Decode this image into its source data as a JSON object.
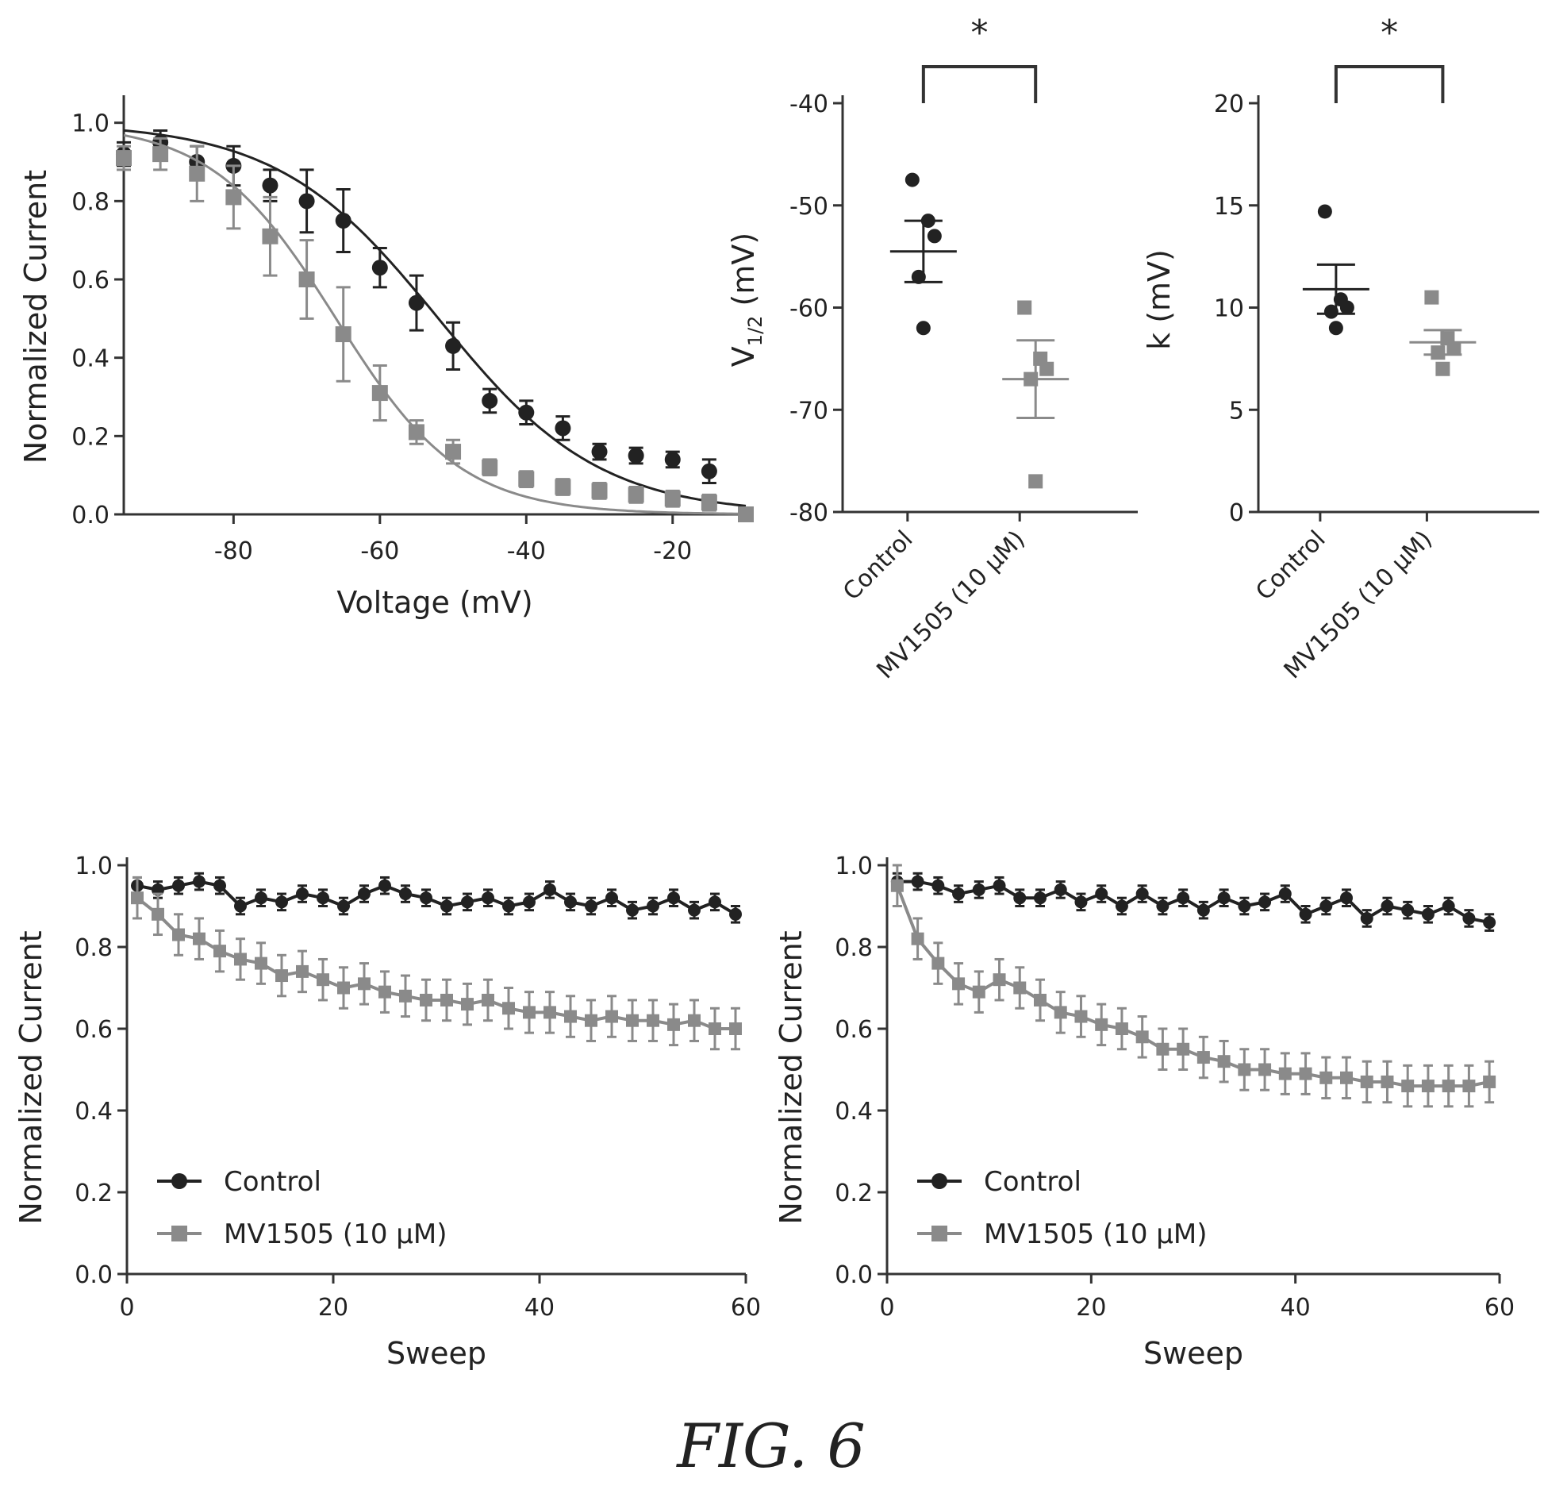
{
  "figure_label": "FIG. 6",
  "colors": {
    "control": "#222222",
    "mv1505": "#8a8a8a"
  },
  "chart_data": [
    {
      "id": "inactivation",
      "type": "scatter",
      "title": "",
      "xlabel": "Voltage (mV)",
      "ylabel": "Normalized Current",
      "xlim": [
        -95,
        -10
      ],
      "ylim": [
        0.0,
        1.05
      ],
      "xticks": [
        -80,
        -60,
        -40,
        -20
      ],
      "xtick_labels": [
        "-80",
        "-60",
        "-40",
        "-20"
      ],
      "yticks": [
        0.0,
        0.2,
        0.4,
        0.6,
        0.8,
        1.0
      ],
      "ytick_labels": [
        "0.0",
        "0.2",
        "0.4",
        "0.6",
        "0.8",
        "1.0"
      ],
      "series": [
        {
          "key": "control",
          "x": [
            -95,
            -90,
            -85,
            -80,
            -75,
            -70,
            -65,
            -60,
            -55,
            -50,
            -45,
            -40,
            -35,
            -30,
            -25,
            -20,
            -15,
            -10
          ],
          "y": [
            0.92,
            0.95,
            0.9,
            0.89,
            0.84,
            0.8,
            0.75,
            0.63,
            0.54,
            0.43,
            0.29,
            0.26,
            0.22,
            0.16,
            0.15,
            0.14,
            0.11,
            0.0
          ],
          "err": [
            0.03,
            0.03,
            0.04,
            0.05,
            0.04,
            0.08,
            0.08,
            0.05,
            0.07,
            0.06,
            0.03,
            0.03,
            0.03,
            0.02,
            0.02,
            0.02,
            0.03,
            0.01
          ],
          "fit": {
            "v_half": -52,
            "k": 11
          }
        },
        {
          "key": "mv1505",
          "x": [
            -95,
            -90,
            -85,
            -80,
            -75,
            -70,
            -65,
            -60,
            -55,
            -50,
            -45,
            -40,
            -35,
            -30,
            -25,
            -20,
            -15,
            -10
          ],
          "y": [
            0.91,
            0.92,
            0.87,
            0.81,
            0.71,
            0.6,
            0.46,
            0.31,
            0.21,
            0.16,
            0.12,
            0.09,
            0.07,
            0.06,
            0.05,
            0.04,
            0.03,
            0.0
          ],
          "err": [
            0.03,
            0.04,
            0.07,
            0.08,
            0.1,
            0.1,
            0.12,
            0.07,
            0.03,
            0.03,
            0.02,
            0.02,
            0.02,
            0.02,
            0.02,
            0.02,
            0.02,
            0.01
          ],
          "fit": {
            "v_half": -66,
            "k": 8.5
          }
        }
      ]
    },
    {
      "id": "vhalf",
      "type": "scatter",
      "title": "",
      "ylabel": "V",
      "ylabel_sub": "1/2",
      "ylabel_rest": " (mV)",
      "ylim": [
        -80,
        -40
      ],
      "yticks": [
        -80,
        -70,
        -60,
        -50,
        -40
      ],
      "ytick_labels": [
        "-80",
        "-70",
        "-60",
        "-50",
        "-40"
      ],
      "categories": [
        "Control",
        "MV1505 (10 μM)"
      ],
      "points": [
        [
          -47.5,
          -51.5,
          -53,
          -57,
          -62
        ],
        [
          -60,
          -65,
          -66,
          -67,
          -77
        ]
      ],
      "mean": [
        -54.5,
        -67
      ],
      "sem": [
        3.0,
        3.8
      ],
      "significance": "*"
    },
    {
      "id": "slope",
      "type": "scatter",
      "title": "",
      "ylabel": "k (mV)",
      "ylim": [
        0,
        20
      ],
      "yticks": [
        0,
        5,
        10,
        15,
        20
      ],
      "ytick_labels": [
        "0",
        "5",
        "10",
        "15",
        "20"
      ],
      "categories": [
        "Control",
        "MV1505 (10 μM)"
      ],
      "points": [
        [
          14.7,
          10.4,
          10.0,
          9.8,
          9.0
        ],
        [
          10.5,
          8.5,
          8.0,
          7.8,
          7.0
        ]
      ],
      "mean": [
        10.9,
        8.3
      ],
      "sem": [
        1.2,
        0.6
      ],
      "significance": "*"
    },
    {
      "id": "rundown_left",
      "type": "line",
      "title": "",
      "xlabel": "Sweep",
      "ylabel": "Normalized Current",
      "xlim": [
        0,
        60
      ],
      "ylim": [
        0.0,
        1.0
      ],
      "xticks": [
        0,
        20,
        40,
        60
      ],
      "xtick_labels": [
        "0",
        "20",
        "40",
        "60"
      ],
      "yticks": [
        0.0,
        0.2,
        0.4,
        0.6,
        0.8,
        1.0
      ],
      "ytick_labels": [
        "0.0",
        "0.2",
        "0.4",
        "0.6",
        "0.8",
        "1.0"
      ],
      "legend": {
        "position": "bottom-left",
        "entries": [
          "Control",
          "MV1505 (10 μM)"
        ]
      },
      "series": [
        {
          "key": "control",
          "name": "Control",
          "x": [
            1,
            3,
            5,
            7,
            9,
            11,
            13,
            15,
            17,
            19,
            21,
            23,
            25,
            27,
            29,
            31,
            33,
            35,
            37,
            39,
            41,
            43,
            45,
            47,
            49,
            51,
            53,
            55,
            57,
            59
          ],
          "y": [
            0.95,
            0.94,
            0.95,
            0.96,
            0.95,
            0.9,
            0.92,
            0.91,
            0.93,
            0.92,
            0.9,
            0.93,
            0.95,
            0.93,
            0.92,
            0.9,
            0.91,
            0.92,
            0.9,
            0.91,
            0.94,
            0.91,
            0.9,
            0.92,
            0.89,
            0.9,
            0.92,
            0.89,
            0.91,
            0.88
          ],
          "err": 0.02
        },
        {
          "key": "mv1505",
          "name": "MV1505 (10 μM)",
          "x": [
            1,
            3,
            5,
            7,
            9,
            11,
            13,
            15,
            17,
            19,
            21,
            23,
            25,
            27,
            29,
            31,
            33,
            35,
            37,
            39,
            41,
            43,
            45,
            47,
            49,
            51,
            53,
            55,
            57,
            59
          ],
          "y": [
            0.92,
            0.88,
            0.83,
            0.82,
            0.79,
            0.77,
            0.76,
            0.73,
            0.74,
            0.72,
            0.7,
            0.71,
            0.69,
            0.68,
            0.67,
            0.67,
            0.66,
            0.67,
            0.65,
            0.64,
            0.64,
            0.63,
            0.62,
            0.63,
            0.62,
            0.62,
            0.61,
            0.62,
            0.6,
            0.6
          ],
          "err": 0.05
        }
      ]
    },
    {
      "id": "rundown_right",
      "type": "line",
      "title": "",
      "xlabel": "Sweep",
      "ylabel": "Normalized Current",
      "xlim": [
        0,
        60
      ],
      "ylim": [
        0.0,
        1.0
      ],
      "xticks": [
        0,
        20,
        40,
        60
      ],
      "xtick_labels": [
        "0",
        "20",
        "40",
        "60"
      ],
      "yticks": [
        0.0,
        0.2,
        0.4,
        0.6,
        0.8,
        1.0
      ],
      "ytick_labels": [
        "0.0",
        "0.2",
        "0.4",
        "0.6",
        "0.8",
        "1.0"
      ],
      "legend": {
        "position": "bottom-left",
        "entries": [
          "Control",
          "MV1505 (10 μM)"
        ]
      },
      "series": [
        {
          "key": "control",
          "name": "Control",
          "x": [
            1,
            3,
            5,
            7,
            9,
            11,
            13,
            15,
            17,
            19,
            21,
            23,
            25,
            27,
            29,
            31,
            33,
            35,
            37,
            39,
            41,
            43,
            45,
            47,
            49,
            51,
            53,
            55,
            57,
            59
          ],
          "y": [
            0.96,
            0.96,
            0.95,
            0.93,
            0.94,
            0.95,
            0.92,
            0.92,
            0.94,
            0.91,
            0.93,
            0.9,
            0.93,
            0.9,
            0.92,
            0.89,
            0.92,
            0.9,
            0.91,
            0.93,
            0.88,
            0.9,
            0.92,
            0.87,
            0.9,
            0.89,
            0.88,
            0.9,
            0.87,
            0.86
          ],
          "err": 0.02
        },
        {
          "key": "mv1505",
          "name": "MV1505 (10 μM)",
          "x": [
            1,
            3,
            5,
            7,
            9,
            11,
            13,
            15,
            17,
            19,
            21,
            23,
            25,
            27,
            29,
            31,
            33,
            35,
            37,
            39,
            41,
            43,
            45,
            47,
            49,
            51,
            53,
            55,
            57,
            59
          ],
          "y": [
            0.95,
            0.82,
            0.76,
            0.71,
            0.69,
            0.72,
            0.7,
            0.67,
            0.64,
            0.63,
            0.61,
            0.6,
            0.58,
            0.55,
            0.55,
            0.53,
            0.52,
            0.5,
            0.5,
            0.49,
            0.49,
            0.48,
            0.48,
            0.47,
            0.47,
            0.46,
            0.46,
            0.46,
            0.46,
            0.47
          ],
          "err": 0.05
        }
      ]
    }
  ]
}
